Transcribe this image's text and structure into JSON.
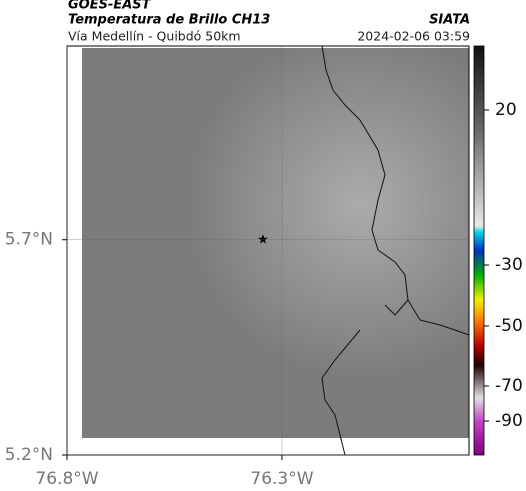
{
  "header": {
    "source": "GOES-EAST",
    "product": "Temperatura de Brillo CH13",
    "org": "SIATA",
    "route": "Vía Medellín - Quibdó 50km",
    "datetime": "2024-02-06 03:59"
  },
  "map": {
    "xlim": [
      -76.8,
      -75.865
    ],
    "ylim": [
      5.2,
      6.15
    ],
    "xticks": [
      {
        "value": -76.8,
        "label": "76.8°W"
      },
      {
        "value": -76.3,
        "label": "76.3°W"
      }
    ],
    "yticks": [
      {
        "value": 5.2,
        "label": "5.2°N"
      },
      {
        "value": 5.7,
        "label": "5.7°N"
      }
    ],
    "grid": true
  },
  "colorbar": {
    "ticks": [
      20,
      -30,
      -50,
      -70,
      -90
    ]
  }
}
